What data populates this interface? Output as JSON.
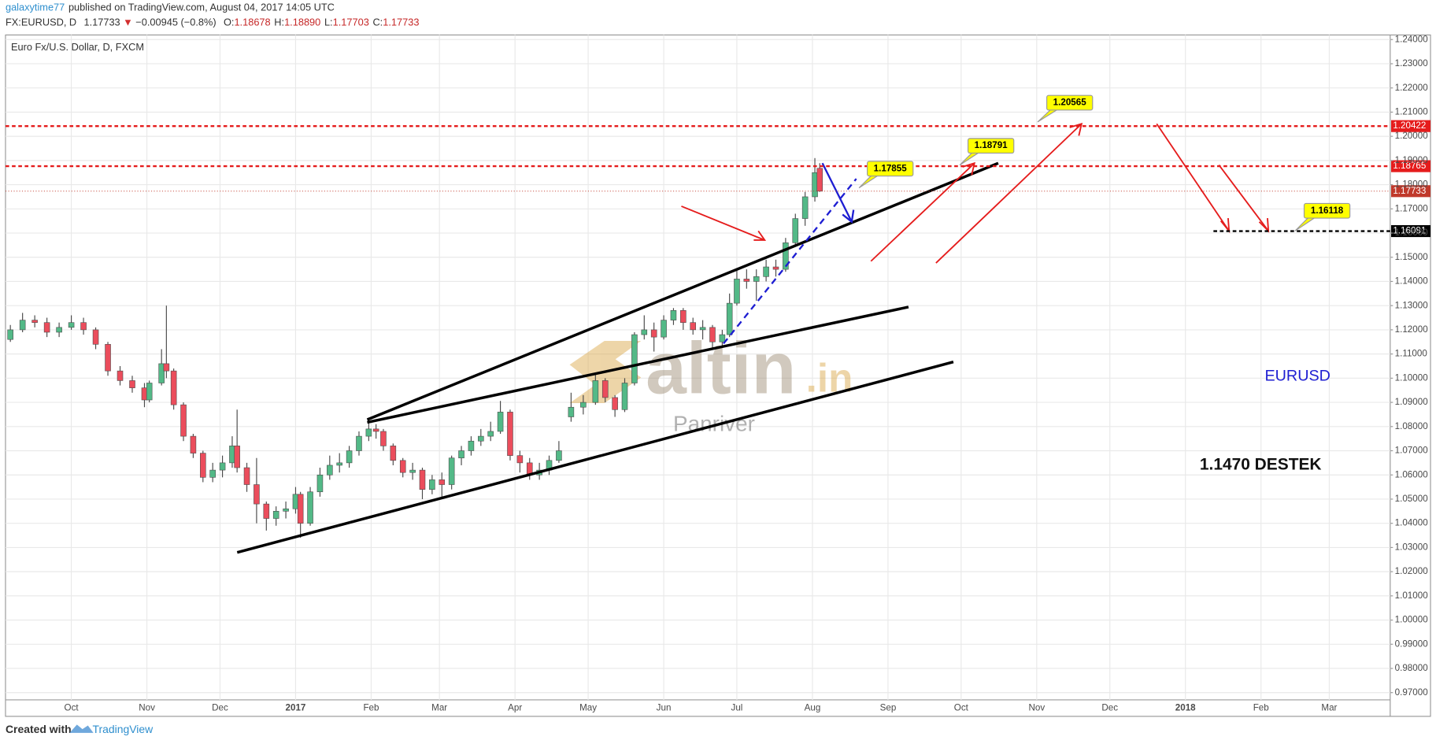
{
  "header": {
    "author": "galaxytime77",
    "published": "published on TradingView.com, August 04, 2017 14:05 UTC",
    "symbol": "FX:EURUSD, D",
    "last": "1.17733",
    "arrow": "▼",
    "change": "−0.00945 (−0.8%)",
    "ohlc": [
      {
        "key": "O:",
        "value": "1.18678"
      },
      {
        "key": "H:",
        "value": "1.18890"
      },
      {
        "key": "L:",
        "value": "1.17703"
      },
      {
        "key": "C:",
        "value": "1.17733"
      }
    ]
  },
  "chart_data": {
    "type": "candlestick",
    "title": "Euro Fx/U.S. Dollar, D, FXCM",
    "x": [
      5,
      10,
      15,
      20,
      25,
      30,
      35,
      40,
      45,
      50,
      55,
      60,
      62,
      67,
      69,
      72,
      76,
      80,
      84,
      88,
      92,
      96,
      98,
      102,
      106,
      110,
      114,
      118,
      122,
      124,
      128,
      132,
      136,
      140,
      144,
      148,
      152,
      155,
      158,
      162,
      166,
      170,
      174,
      178,
      182,
      186,
      190,
      194,
      198,
      202,
      206,
      210,
      214,
      218,
      222,
      226,
      230,
      235,
      240,
      245,
      249,
      253,
      257,
      261,
      265,
      269,
      273,
      277,
      281,
      285,
      289,
      293,
      297,
      300,
      303,
      307,
      311,
      315,
      319,
      323,
      327,
      331,
      335,
      337
    ],
    "open": [
      1.116,
      1.12,
      1.124,
      1.123,
      1.119,
      1.121,
      1.123,
      1.12,
      1.114,
      1.103,
      1.099,
      1.096,
      1.091,
      1.098,
      1.106,
      1.103,
      1.089,
      1.076,
      1.069,
      1.059,
      1.062,
      1.065,
      1.072,
      1.063,
      1.056,
      1.048,
      1.042,
      1.045,
      1.046,
      1.052,
      1.04,
      1.053,
      1.06,
      1.064,
      1.065,
      1.07,
      1.076,
      1.079,
      1.078,
      1.072,
      1.066,
      1.061,
      1.062,
      1.054,
      1.058,
      1.056,
      1.067,
      1.07,
      1.074,
      1.076,
      1.078,
      1.086,
      1.068,
      1.065,
      1.06,
      1.062,
      1.066,
      1.084,
      1.088,
      1.09,
      1.099,
      1.092,
      1.087,
      1.098,
      1.118,
      1.12,
      1.117,
      1.124,
      1.128,
      1.123,
      1.12,
      1.121,
      1.115,
      1.118,
      1.131,
      1.141,
      1.14,
      1.142,
      1.146,
      1.145,
      1.156,
      1.166,
      1.175,
      1.18678
    ],
    "high": [
      1.122,
      1.127,
      1.126,
      1.125,
      1.123,
      1.126,
      1.125,
      1.121,
      1.115,
      1.105,
      1.101,
      1.098,
      1.099,
      1.112,
      1.13,
      1.104,
      1.09,
      1.077,
      1.07,
      1.065,
      1.068,
      1.076,
      1.087,
      1.065,
      1.067,
      1.049,
      1.047,
      1.049,
      1.055,
      1.053,
      1.055,
      1.063,
      1.068,
      1.069,
      1.072,
      1.078,
      1.083,
      1.081,
      1.079,
      1.073,
      1.067,
      1.065,
      1.063,
      1.06,
      1.061,
      1.068,
      1.072,
      1.076,
      1.079,
      1.082,
      1.0906,
      1.087,
      1.07,
      1.067,
      1.065,
      1.068,
      1.074,
      1.094,
      1.093,
      1.102,
      1.1,
      1.093,
      1.1,
      1.119,
      1.126,
      1.123,
      1.126,
      1.129,
      1.129,
      1.125,
      1.124,
      1.122,
      1.12,
      1.135,
      1.145,
      1.145,
      1.145,
      1.149,
      1.149,
      1.158,
      1.168,
      1.177,
      1.191,
      1.1889
    ],
    "low": [
      1.115,
      1.119,
      1.121,
      1.117,
      1.117,
      1.12,
      1.118,
      1.112,
      1.101,
      1.097,
      1.094,
      1.088,
      1.09,
      1.097,
      1.1,
      1.087,
      1.074,
      1.067,
      1.057,
      1.057,
      1.059,
      1.063,
      1.061,
      1.053,
      1.04,
      1.037,
      1.039,
      1.042,
      1.044,
      1.034,
      1.039,
      1.051,
      1.058,
      1.061,
      1.063,
      1.068,
      1.074,
      1.075,
      1.07,
      1.064,
      1.059,
      1.058,
      1.05,
      1.052,
      1.05,
      1.054,
      1.064,
      1.068,
      1.072,
      1.074,
      1.077,
      1.066,
      1.061,
      1.058,
      1.058,
      1.06,
      1.065,
      1.082,
      1.085,
      1.089,
      1.09,
      1.084,
      1.086,
      1.097,
      1.116,
      1.111,
      1.116,
      1.122,
      1.12,
      1.118,
      1.116,
      1.112,
      1.113,
      1.117,
      1.13,
      1.137,
      1.132,
      1.14,
      1.142,
      1.144,
      1.155,
      1.163,
      1.173,
      1.17703
    ],
    "close": [
      1.12,
      1.124,
      1.123,
      1.119,
      1.121,
      1.123,
      1.12,
      1.114,
      1.103,
      1.099,
      1.096,
      1.091,
      1.098,
      1.106,
      1.103,
      1.089,
      1.076,
      1.069,
      1.059,
      1.062,
      1.065,
      1.072,
      1.063,
      1.056,
      1.048,
      1.042,
      1.045,
      1.046,
      1.052,
      1.04,
      1.053,
      1.06,
      1.064,
      1.065,
      1.07,
      1.076,
      1.079,
      1.078,
      1.072,
      1.066,
      1.061,
      1.062,
      1.054,
      1.058,
      1.056,
      1.067,
      1.07,
      1.074,
      1.076,
      1.078,
      1.086,
      1.068,
      1.065,
      1.06,
      1.062,
      1.066,
      1.07,
      1.088,
      1.09,
      1.099,
      1.092,
      1.087,
      1.098,
      1.118,
      1.12,
      1.117,
      1.124,
      1.128,
      1.123,
      1.12,
      1.121,
      1.115,
      1.118,
      1.131,
      1.141,
      1.14,
      1.142,
      1.146,
      1.145,
      1.156,
      1.166,
      1.175,
      1.185,
      1.17733
    ],
    "up_color": "#53b987",
    "down_color": "#eb4d5c",
    "xlim": [
      3,
      571
    ],
    "xticks": [
      {
        "value": 30,
        "label": "Oct"
      },
      {
        "value": 61,
        "label": "Nov"
      },
      {
        "value": 91,
        "label": "Dec"
      },
      {
        "value": 122,
        "label": "2017"
      },
      {
        "value": 153,
        "label": "Feb"
      },
      {
        "value": 181,
        "label": "Mar"
      },
      {
        "value": 212,
        "label": "Apr"
      },
      {
        "value": 242,
        "label": "May"
      },
      {
        "value": 273,
        "label": "Jun"
      },
      {
        "value": 303,
        "label": "Jul"
      },
      {
        "value": 334,
        "label": "Aug"
      },
      {
        "value": 365,
        "label": "Sep"
      },
      {
        "value": 395,
        "label": "Oct"
      },
      {
        "value": 426,
        "label": "Nov"
      },
      {
        "value": 456,
        "label": "Dec"
      },
      {
        "value": 487,
        "label": "2018"
      },
      {
        "value": 518,
        "label": "Feb"
      },
      {
        "value": 546,
        "label": "Mar"
      }
    ],
    "ylim": [
      0.967,
      1.2419
    ],
    "yticks": [
      {
        "value": 1.24,
        "label": "1.24000"
      },
      {
        "value": 1.23,
        "label": "1.23000"
      },
      {
        "value": 1.22,
        "label": "1.22000"
      },
      {
        "value": 1.21,
        "label": "1.21000"
      },
      {
        "value": 1.2,
        "label": "1.20000"
      },
      {
        "value": 1.19,
        "label": "1.19000"
      },
      {
        "value": 1.18,
        "label": "1.18000"
      },
      {
        "value": 1.17,
        "label": "1.17000"
      },
      {
        "value": 1.16,
        "label": "1.16000"
      },
      {
        "value": 1.15,
        "label": "1.15000"
      },
      {
        "value": 1.14,
        "label": "1.14000"
      },
      {
        "value": 1.13,
        "label": "1.13000"
      },
      {
        "value": 1.12,
        "label": "1.12000"
      },
      {
        "value": 1.11,
        "label": "1.11000"
      },
      {
        "value": 1.1,
        "label": "1.10000"
      },
      {
        "value": 1.09,
        "label": "1.09000"
      },
      {
        "value": 1.08,
        "label": "1.08000"
      },
      {
        "value": 1.07,
        "label": "1.07000"
      },
      {
        "value": 1.06,
        "label": "1.06000"
      },
      {
        "value": 1.05,
        "label": "1.05000"
      },
      {
        "value": 1.04,
        "label": "1.04000"
      },
      {
        "value": 1.03,
        "label": "1.03000"
      },
      {
        "value": 1.02,
        "label": "1.02000"
      },
      {
        "value": 1.01,
        "label": "1.01000"
      },
      {
        "value": 1.0,
        "label": "1.00000"
      },
      {
        "value": 0.99,
        "label": "0.99000"
      },
      {
        "value": 0.98,
        "label": "0.98000"
      },
      {
        "value": 0.97,
        "label": "0.97000"
      }
    ],
    "grid": true,
    "hlines": [
      {
        "value": 1.20422,
        "color": "#e51c1c"
      },
      {
        "value": 1.18765,
        "color": "#e51c1c"
      },
      {
        "value": 1.16081,
        "color": "#000000"
      }
    ],
    "last_color": "#c0392b",
    "annotations": [
      1.20565,
      1.18791,
      1.17855,
      1.16118
    ],
    "symbol_name": "EURUSD",
    "support": "1.1470 DESTEK"
  },
  "watermark": {
    "brand": "altin",
    "tld": ".in",
    "sub": "Panriver"
  },
  "footer": {
    "created": "Created with",
    "brand": "TradingView"
  }
}
